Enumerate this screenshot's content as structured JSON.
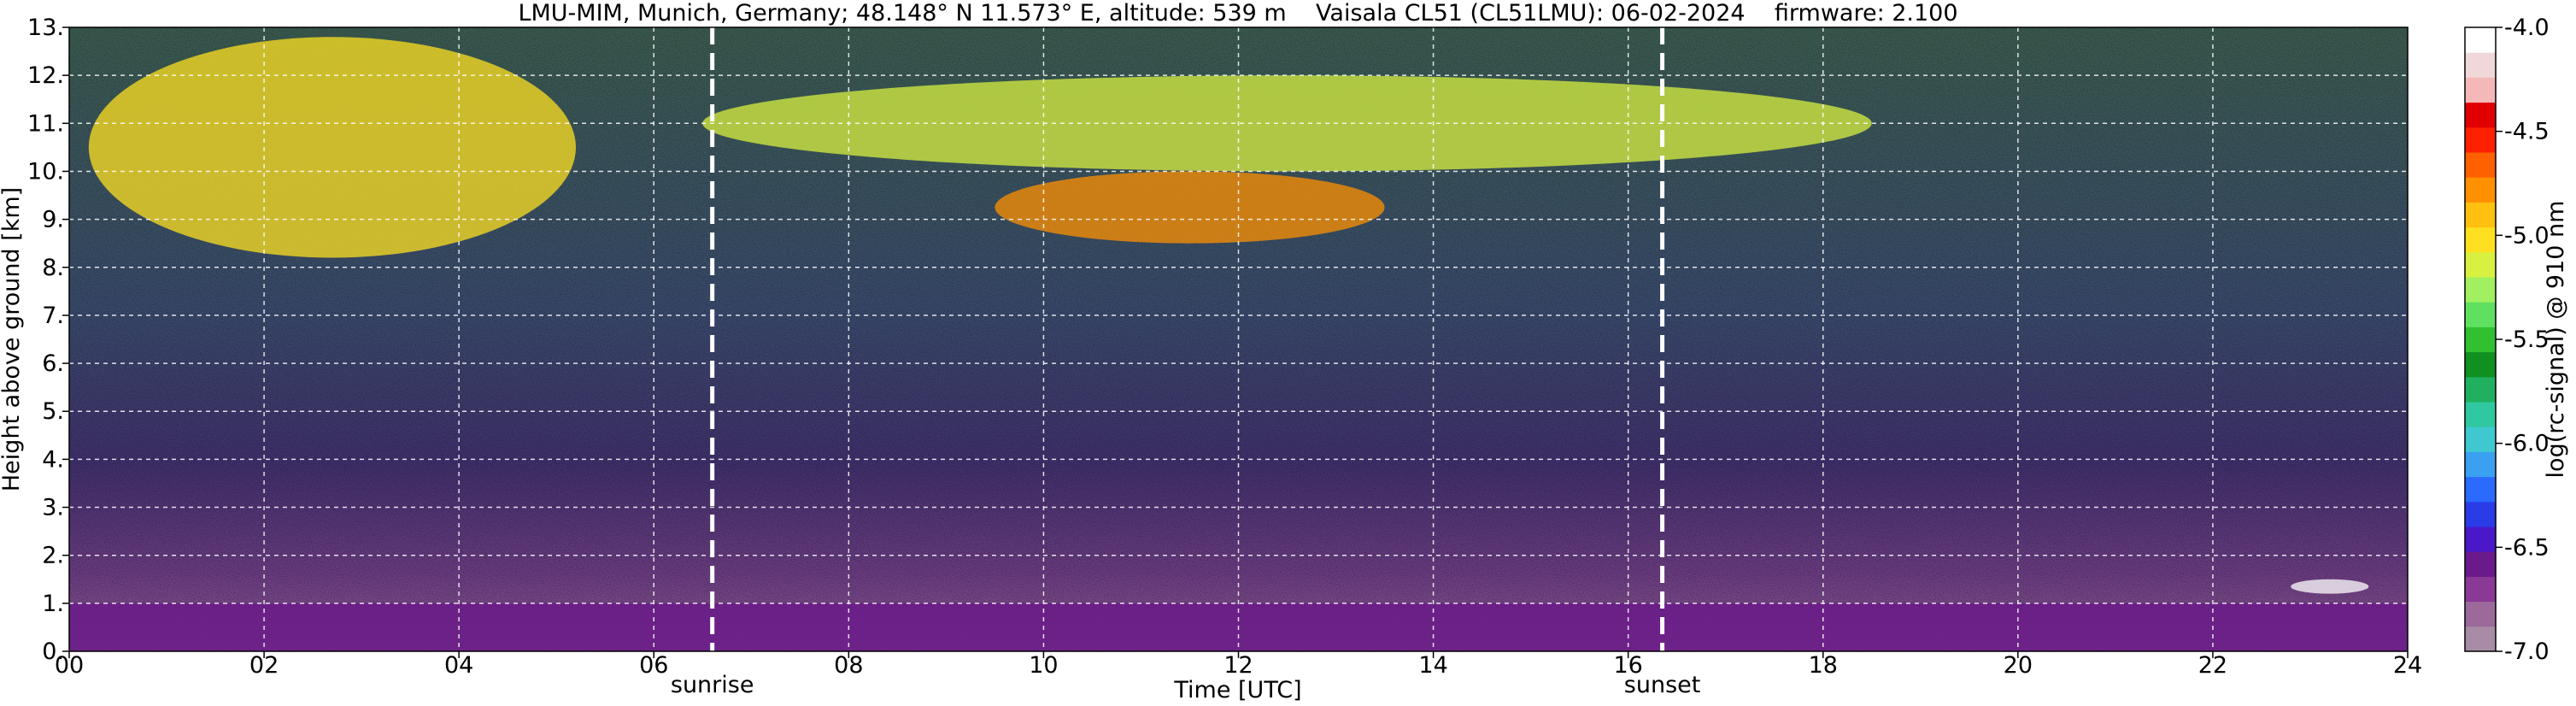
{
  "chart_data": {
    "type": "heatmap",
    "title": "LMU-MIM, Munich, Germany; 48.148° N 11.573° E, altitude: 539 m    Vaisala CL51 (CL51LMU): 06-02-2024    firmware: 2.100",
    "xlabel": "Time [UTC]",
    "ylabel": "Height above ground [km]",
    "colorbar_label": "log(rc-signal) @ 910 nm",
    "xlim": [
      0,
      24
    ],
    "ylim": [
      0,
      13
    ],
    "x_ticks": [
      0,
      2,
      4,
      6,
      8,
      10,
      12,
      14,
      16,
      18,
      20,
      22,
      24
    ],
    "x_tick_labels": [
      "00",
      "02",
      "04",
      "06",
      "08",
      "10",
      "12",
      "14",
      "16",
      "18",
      "20",
      "22",
      "24"
    ],
    "y_ticks": [
      0,
      1,
      2,
      3,
      4,
      5,
      6,
      7,
      8,
      9,
      10,
      11,
      12,
      13
    ],
    "y_tick_labels": [
      "0.",
      "1.",
      "2.",
      "3.",
      "4.",
      "5.",
      "6.",
      "7.",
      "8.",
      "9.",
      "10.",
      "11.",
      "12.",
      "13."
    ],
    "grid": true,
    "colorbar_range": [
      -7.0,
      -4.0
    ],
    "colorbar_ticks": [
      -7.0,
      -6.5,
      -6.0,
      -5.5,
      -5.0,
      -4.5,
      -4.0
    ],
    "colorbar_tick_labels": [
      "-7.0",
      "-6.5",
      "-6.0",
      "-5.5",
      "-5.0",
      "-4.5",
      "-4.0"
    ],
    "colorbar_colors": [
      "#a88ca6",
      "#9b6a9b",
      "#8a3a95",
      "#6a1a8a",
      "#4a18c8",
      "#2a3ce8",
      "#2a6aff",
      "#3aa0f0",
      "#40c8d0",
      "#30c8a0",
      "#20b060",
      "#109020",
      "#30c030",
      "#60e060",
      "#a0f060",
      "#d8f040",
      "#ffe020",
      "#ffc010",
      "#ff9000",
      "#ff6000",
      "#ff2000",
      "#e00000",
      "#f4b8b8",
      "#f0d8d8",
      "#ffffff"
    ],
    "annotations": [
      {
        "label": "sunrise",
        "x": 6.6
      },
      {
        "label": "sunset",
        "x": 16.35
      }
    ],
    "features": [
      {
        "name": "boundary-layer",
        "x": [
          0,
          24
        ],
        "y_top_km": 1.0,
        "level": -6.6
      },
      {
        "name": "upper-cloud-left",
        "x": [
          0.2,
          5.2
        ],
        "y_km": [
          8.2,
          12.8
        ],
        "level": -5.0
      },
      {
        "name": "upper-cloud-center",
        "x": [
          9.5,
          13.5
        ],
        "y_km": [
          8.5,
          10.0
        ],
        "level": -4.8
      },
      {
        "name": "cirrus-band",
        "x": [
          6.5,
          18.5
        ],
        "y_km": [
          10.0,
          12.0
        ],
        "level": -5.2
      },
      {
        "name": "low-cloud",
        "x": [
          22.8,
          23.6
        ],
        "y_km": [
          1.2,
          1.5
        ],
        "level": -4.0
      }
    ]
  }
}
